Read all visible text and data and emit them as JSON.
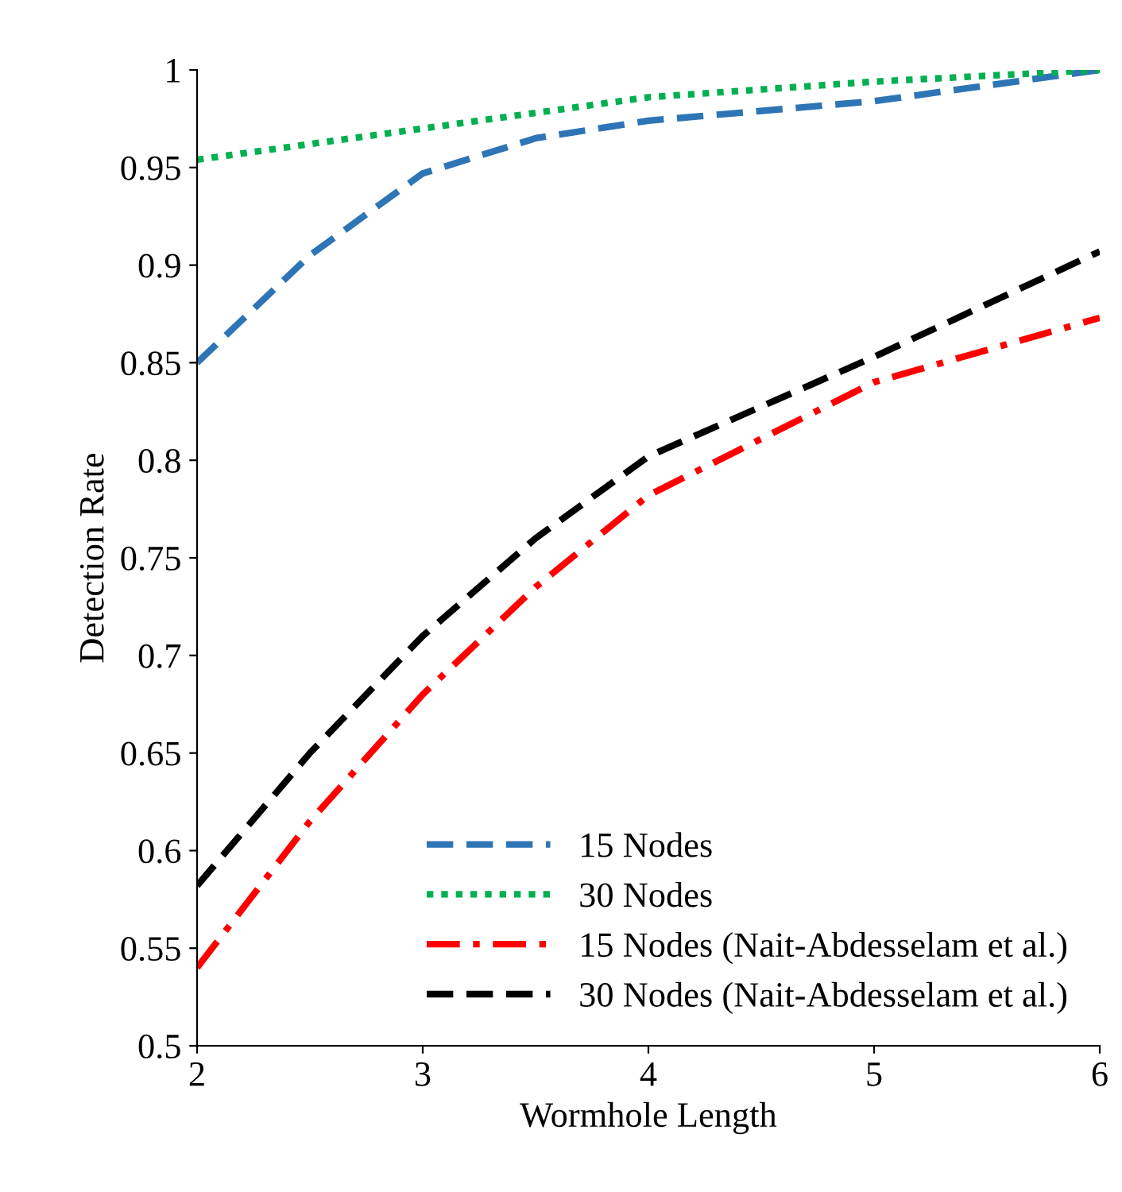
{
  "chart_data": {
    "type": "line",
    "xlabel": "Wormhole Length",
    "ylabel": "Detection Rate",
    "x": [
      2,
      2.5,
      3,
      3.5,
      4,
      5,
      6
    ],
    "series": [
      {
        "name": "15 Nodes",
        "color": "#2e75b6",
        "line_style": "dashed",
        "values": [
          0.85,
          0.905,
          0.947,
          0.965,
          0.974,
          0.984,
          1.0
        ]
      },
      {
        "name": "30 Nodes",
        "color": "#00b050",
        "line_style": "dotted",
        "values": [
          0.954,
          0.962,
          0.97,
          0.978,
          0.986,
          0.994,
          1.0
        ]
      },
      {
        "name": "15 Nodes (Nait-Abdesselam et al.)",
        "color": "#ff0000",
        "line_style": "dashdot",
        "values": [
          0.54,
          0.615,
          0.68,
          0.735,
          0.782,
          0.84,
          0.873
        ]
      },
      {
        "name": "30 Nodes (Nait-Abdesselam et al.)",
        "color": "#000000",
        "line_style": "dashed",
        "values": [
          0.582,
          0.65,
          0.71,
          0.76,
          0.802,
          0.853,
          0.907
        ]
      }
    ],
    "xlim": [
      2,
      6
    ],
    "xticks": [
      2,
      3,
      4,
      5,
      6
    ],
    "ylim": [
      0.5,
      1
    ],
    "yticks": [
      0.5,
      0.55,
      0.6,
      0.65,
      0.7,
      0.75,
      0.8,
      0.85,
      0.9,
      0.95,
      1
    ],
    "grid": false,
    "legend": "bottom right",
    "marker": "none"
  }
}
